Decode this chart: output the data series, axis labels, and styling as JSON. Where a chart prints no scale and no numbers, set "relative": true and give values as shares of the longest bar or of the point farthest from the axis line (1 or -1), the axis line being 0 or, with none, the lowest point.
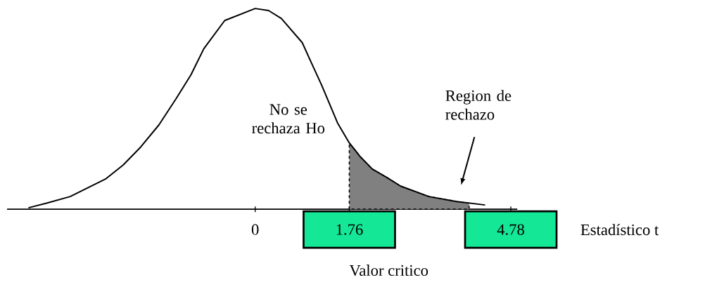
{
  "chart_data": {
    "type": "line",
    "relative": true,
    "xlabel": "Estadístico t",
    "xlim": [
      -4.64,
      4.9
    ],
    "xticks": [
      {
        "value": 0,
        "label": "0"
      },
      {
        "value": 1.76,
        "label": "1.76"
      },
      {
        "value": 4.78,
        "label": "4.78"
      }
    ],
    "series": [
      {
        "type": "line",
        "color": "#000000",
        "x": [
          -4.24,
          -3.9,
          -3.46,
          -2.8,
          -2.47,
          -2.14,
          -1.8,
          -1.48,
          -1.2,
          -0.96,
          -0.57,
          0,
          0.25,
          0.49,
          0.88,
          1.05,
          1.24,
          1.54,
          1.76,
          1.97,
          2.19,
          2.45,
          2.72,
          3.25,
          3.77,
          4.3
        ],
        "values": [
          0.007,
          0.03,
          0.063,
          0.15,
          0.22,
          0.31,
          0.42,
          0.55,
          0.67,
          0.8,
          0.94,
          1,
          0.99,
          0.95,
          0.83,
          0.73,
          0.62,
          0.43,
          0.33,
          0.26,
          0.2,
          0.16,
          0.115,
          0.063,
          0.038,
          0.021
        ]
      },
      {
        "type": "area",
        "color": "#808080",
        "line_style": "dashed",
        "x": [
          1.76,
          1.97,
          2.19,
          2.45,
          2.72,
          3.25,
          3.77,
          4.0
        ],
        "values": [
          0.33,
          0.26,
          0.2,
          0.16,
          0.115,
          0.063,
          0.038,
          0.03
        ]
      }
    ],
    "annotations": [
      "No se rechaza Ho",
      "Region de rechazo",
      "Valor critico"
    ]
  }
}
